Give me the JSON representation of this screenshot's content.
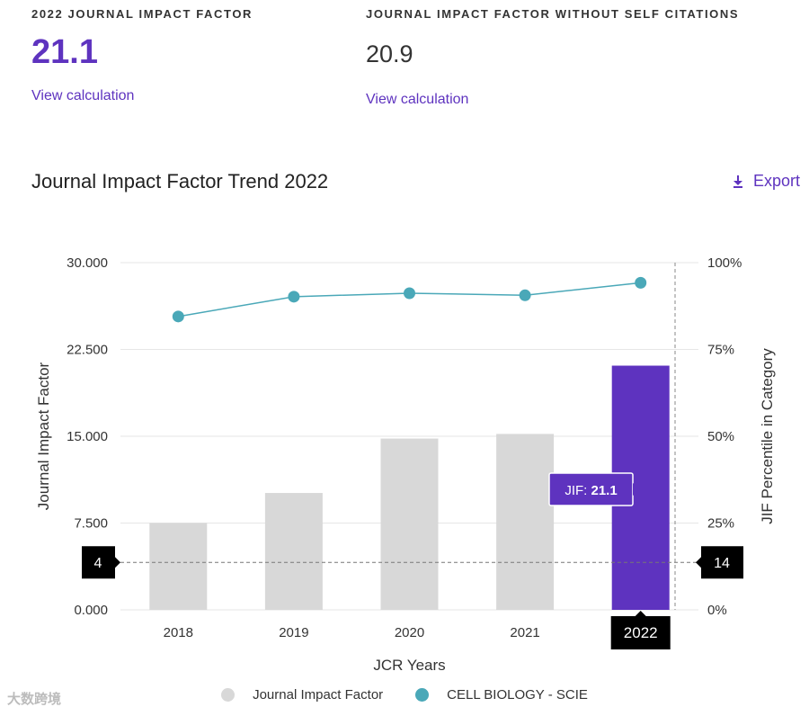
{
  "metrics": {
    "jif": {
      "label": "2022 JOURNAL IMPACT FACTOR",
      "value": "21.1",
      "link": "View calculation"
    },
    "jif_no_self": {
      "label": "JOURNAL IMPACT FACTOR WITHOUT SELF CITATIONS",
      "value": "20.9",
      "link": "View calculation"
    }
  },
  "trend": {
    "title": "Journal Impact Factor Trend 2022",
    "export_label": "Export"
  },
  "colors": {
    "accent": "#5e33bf",
    "bar_gray": "#d8d8d8",
    "line_teal": "#4aa8b8",
    "badge_black": "#000000"
  },
  "chart_data": {
    "type": "bar",
    "categories": [
      "2018",
      "2019",
      "2020",
      "2021",
      "2022"
    ],
    "series": [
      {
        "name": "Journal Impact Factor",
        "type": "bar",
        "axis": "left",
        "values": [
          7.5,
          10.1,
          14.8,
          15.2,
          21.1
        ]
      },
      {
        "name": "CELL BIOLOGY - SCIE",
        "type": "line",
        "axis": "right",
        "values": [
          84.5,
          90.2,
          91.2,
          90.6,
          94.2
        ]
      }
    ],
    "xlabel": "JCR Years",
    "ylabel": "Journal Impact Factor",
    "y2label": "JIF Percentile in Category",
    "ylim": [
      0,
      30
    ],
    "y2lim": [
      0,
      100
    ],
    "yticks": [
      "0.000",
      "7.500",
      "15.000",
      "22.500",
      "30.000"
    ],
    "y2ticks": [
      "0%",
      "25%",
      "50%",
      "75%",
      "100%"
    ],
    "highlight_category": "2022",
    "tooltip": {
      "label": "JIF:",
      "value": "21.1"
    },
    "reference_line": {
      "value": 4.1,
      "left_badge": "4",
      "right_badge": "14"
    }
  },
  "watermark": "大数跨境"
}
